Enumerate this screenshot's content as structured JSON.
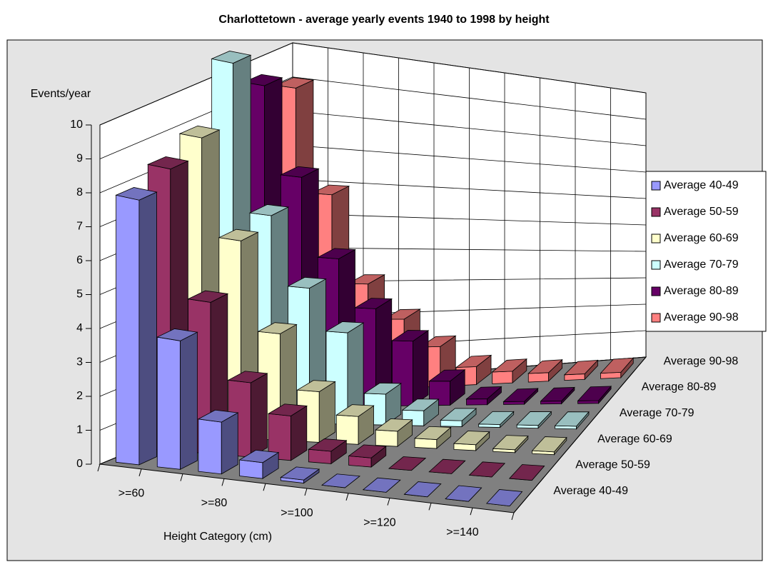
{
  "chart_data": {
    "type": "bar3d",
    "title": "Charlottetown - average yearly events 1940 to 1998 by height",
    "y_label": "Events/year",
    "x_label": "Height Category (cm)",
    "categories": [
      ">=60",
      null,
      ">=80",
      null,
      ">=100",
      null,
      ">=120",
      null,
      ">=140",
      null
    ],
    "series": [
      {
        "name": "Average 40-49",
        "color": "#9999ff",
        "values": [
          7.9,
          3.9,
          1.6,
          0.5,
          0.1,
          0,
          0,
          0,
          0,
          0
        ]
      },
      {
        "name": "Average 50-59",
        "color": "#993366",
        "values": [
          8.4,
          4.6,
          2.3,
          1.4,
          0.4,
          0.3,
          0,
          0,
          0,
          0
        ]
      },
      {
        "name": "Average 60-69",
        "color": "#ffffcc",
        "values": [
          8.9,
          6.0,
          3.3,
          1.6,
          0.9,
          0.5,
          0.3,
          0.2,
          0.1,
          0.1
        ]
      },
      {
        "name": "Average 70-79",
        "color": "#ccffff",
        "values": [
          10.7,
          6.3,
          4.2,
          2.9,
          1.0,
          0.5,
          0.2,
          0.1,
          0.1,
          0.1
        ]
      },
      {
        "name": "Average 80-89",
        "color": "#660066",
        "values": [
          9.6,
          7.0,
          4.6,
          3.1,
          2.1,
          0.8,
          0.2,
          0.1,
          0.1,
          0.1
        ]
      },
      {
        "name": "Average 90-98",
        "color": "#ff8080",
        "values": [
          9.1,
          6.0,
          3.3,
          2.2,
          1.3,
          0.6,
          0.4,
          0.3,
          0.2,
          0.2
        ]
      }
    ],
    "ylim": [
      0,
      10
    ],
    "yticks": [
      0,
      1,
      2,
      3,
      4,
      5,
      6,
      7,
      8,
      9,
      10
    ],
    "grid": true,
    "legend": "right"
  }
}
